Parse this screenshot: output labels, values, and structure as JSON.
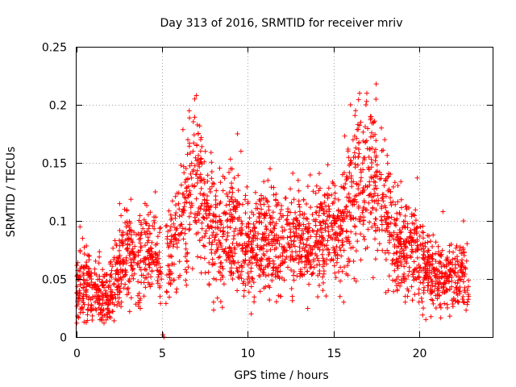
{
  "chart_data": {
    "type": "scatter",
    "title": "Day 313 of 2016, SRMTID for receiver mriv",
    "xlabel": "GPS time / hours",
    "ylabel": "SRMTID / TECUs",
    "xlim": [
      0,
      24.3
    ],
    "ylim": [
      0,
      0.25
    ],
    "xticks": [
      0,
      5,
      10,
      15,
      20
    ],
    "xtick_labels": [
      "0",
      "5",
      "10",
      "15",
      "20"
    ],
    "yticks": [
      0,
      0.05,
      0.1,
      0.15,
      0.2,
      0.25
    ],
    "ytick_labels": [
      "0",
      "0.05",
      "0.1",
      "0.15",
      "0.2",
      "0.25"
    ],
    "grid": true,
    "marker": "+",
    "marker_color": "#ff0000",
    "series": [
      {
        "name": "SRMTID",
        "envelope": {
          "hour": [
            0.0,
            0.5,
            1.0,
            1.5,
            2.0,
            2.5,
            3.0,
            3.5,
            4.0,
            4.5,
            5.0,
            5.5,
            6.0,
            6.5,
            7.0,
            7.5,
            8.0,
            8.5,
            9.0,
            9.5,
            10.0,
            10.5,
            11.0,
            11.5,
            12.0,
            12.5,
            13.0,
            13.5,
            14.0,
            14.5,
            15.0,
            15.5,
            16.0,
            16.5,
            17.0,
            17.5,
            18.0,
            18.5,
            19.0,
            19.5,
            20.0,
            20.5,
            21.0,
            21.5,
            22.0,
            22.5,
            22.9
          ],
          "mean": [
            0.04,
            0.045,
            0.038,
            0.035,
            0.04,
            0.06,
            0.07,
            0.065,
            0.07,
            0.075,
            0.065,
            0.075,
            0.08,
            0.12,
            0.13,
            0.11,
            0.095,
            0.09,
            0.1,
            0.085,
            0.075,
            0.08,
            0.085,
            0.08,
            0.08,
            0.085,
            0.085,
            0.08,
            0.085,
            0.09,
            0.09,
            0.095,
            0.11,
            0.13,
            0.14,
            0.13,
            0.11,
            0.09,
            0.08,
            0.075,
            0.07,
            0.06,
            0.055,
            0.05,
            0.05,
            0.055,
            0.05
          ],
          "spread": [
            0.015,
            0.018,
            0.015,
            0.015,
            0.018,
            0.022,
            0.022,
            0.022,
            0.022,
            0.022,
            0.02,
            0.025,
            0.028,
            0.04,
            0.04,
            0.035,
            0.032,
            0.03,
            0.032,
            0.028,
            0.025,
            0.025,
            0.025,
            0.025,
            0.025,
            0.025,
            0.025,
            0.025,
            0.025,
            0.025,
            0.025,
            0.028,
            0.035,
            0.04,
            0.04,
            0.038,
            0.032,
            0.028,
            0.025,
            0.025,
            0.022,
            0.02,
            0.018,
            0.017,
            0.016,
            0.016,
            0.015
          ]
        },
        "x": [
          0.05,
          0.2,
          0.35,
          0.4,
          1.6,
          2.8,
          2.9,
          4.0,
          4.6,
          5.05,
          5.1,
          6.5,
          6.8,
          6.9,
          7.0,
          7.1,
          7.2,
          8.0,
          9.0,
          9.4,
          9.6,
          10.2,
          11.3,
          12.6,
          15.6,
          16.0,
          16.3,
          16.6,
          16.9,
          17.2,
          17.35,
          17.5,
          17.8,
          18.0,
          18.2,
          19.2,
          19.9,
          20.0,
          20.4,
          21.0,
          21.4,
          21.8,
          22.3,
          22.6,
          22.9
        ],
        "y": [
          0.018,
          0.095,
          0.085,
          0.06,
          0.012,
          0.11,
          0.095,
          0.115,
          0.125,
          0.002,
          0.0,
          0.17,
          0.16,
          0.205,
          0.208,
          0.175,
          0.15,
          0.03,
          0.145,
          0.175,
          0.16,
          0.02,
          0.145,
          0.035,
          0.03,
          0.2,
          0.195,
          0.185,
          0.2,
          0.19,
          0.185,
          0.218,
          0.18,
          0.17,
          0.04,
          0.03,
          0.137,
          0.03,
          0.015,
          0.025,
          0.108,
          0.018,
          0.03,
          0.1,
          0.035
        ]
      }
    ]
  }
}
